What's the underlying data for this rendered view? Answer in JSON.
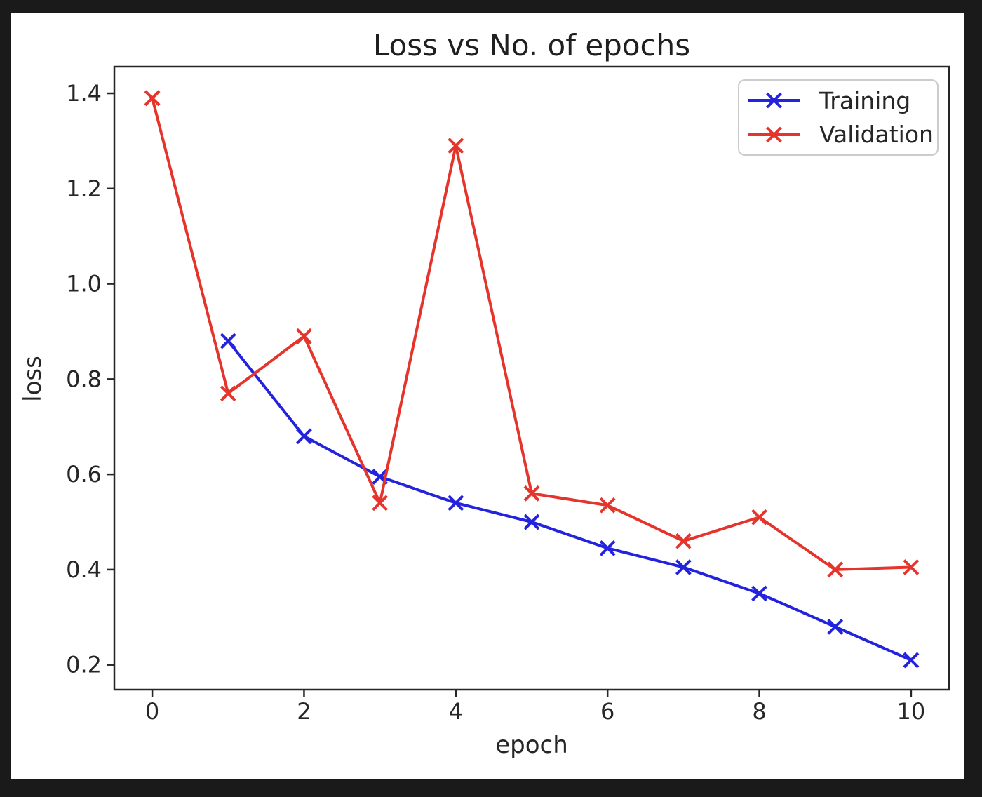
{
  "figure": {
    "outer_background": "#1a1a1a",
    "canvas_color": "#ffffff",
    "text_color": "#262626",
    "spine_color": "#262626"
  },
  "chart_data": {
    "type": "line",
    "title": "Loss vs No. of epochs",
    "xlabel": "epoch",
    "ylabel": "loss",
    "xlim": [
      -0.5,
      10.5
    ],
    "ylim": [
      0.148,
      1.456
    ],
    "xticks": [
      0,
      2,
      4,
      6,
      8,
      10
    ],
    "yticks": [
      0.2,
      0.4,
      0.6,
      0.8,
      1.0,
      1.2,
      1.4
    ],
    "grid": false,
    "marker": "x",
    "legend_position": "upper-right",
    "series": [
      {
        "name": "Training",
        "color": "#2323dd",
        "x": [
          1,
          2,
          3,
          4,
          5,
          6,
          7,
          8,
          9,
          10
        ],
        "y": [
          0.88,
          0.68,
          0.595,
          0.54,
          0.5,
          0.445,
          0.405,
          0.35,
          0.28,
          0.21
        ]
      },
      {
        "name": "Validation",
        "color": "#e5342b",
        "x": [
          0,
          1,
          2,
          3,
          4,
          5,
          6,
          7,
          8,
          9,
          10
        ],
        "y": [
          1.39,
          0.77,
          0.89,
          0.54,
          1.29,
          0.56,
          0.535,
          0.46,
          0.51,
          0.4,
          0.405
        ]
      }
    ]
  }
}
